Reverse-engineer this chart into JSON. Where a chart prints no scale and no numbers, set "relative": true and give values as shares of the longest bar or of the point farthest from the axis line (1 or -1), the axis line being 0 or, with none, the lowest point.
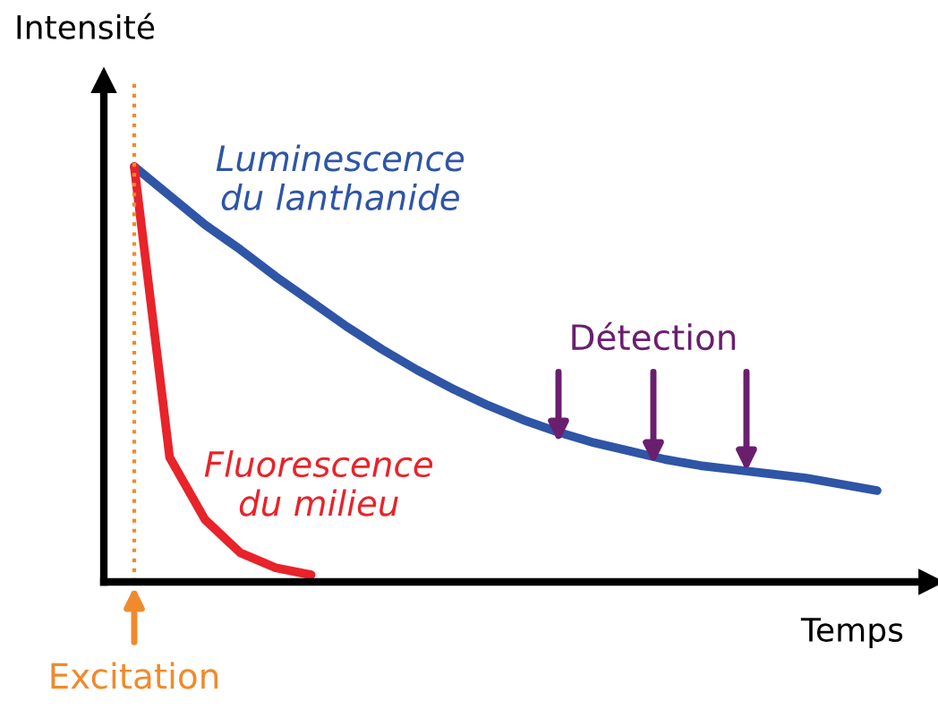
{
  "chart_data": {
    "type": "line",
    "relative": true,
    "xlabel": "Temps",
    "ylabel": "Intensité",
    "legend": false,
    "marker": "none",
    "line_style": "solid",
    "categories": [
      null,
      null,
      null,
      null,
      null,
      null,
      null,
      null,
      null,
      null,
      null,
      null,
      null,
      null,
      null,
      null,
      null,
      null,
      null,
      null,
      null,
      null
    ],
    "series": [
      {
        "name": "Luminescence du lanthanide",
        "color": "#2e55a6",
        "values": [
          1,
          0.93,
          0.86,
          0.8,
          0.735,
          0.675,
          0.615,
          0.56,
          0.51,
          0.465,
          0.425,
          0.39,
          0.36,
          0.335,
          0.315,
          0.295,
          0.28,
          0.27,
          0.26,
          0.25,
          0.235,
          0.22
        ]
      },
      {
        "name": "Fluorescence du milieu",
        "color": "#e8232a",
        "values": [
          1,
          0.3,
          0.15,
          0.07,
          0.034,
          0.017,
          null,
          null,
          null,
          null,
          null,
          null,
          null,
          null,
          null,
          null,
          null,
          null,
          null,
          null,
          null,
          null
        ]
      }
    ],
    "annotations": [
      "Détection",
      "Excitation"
    ]
  }
}
